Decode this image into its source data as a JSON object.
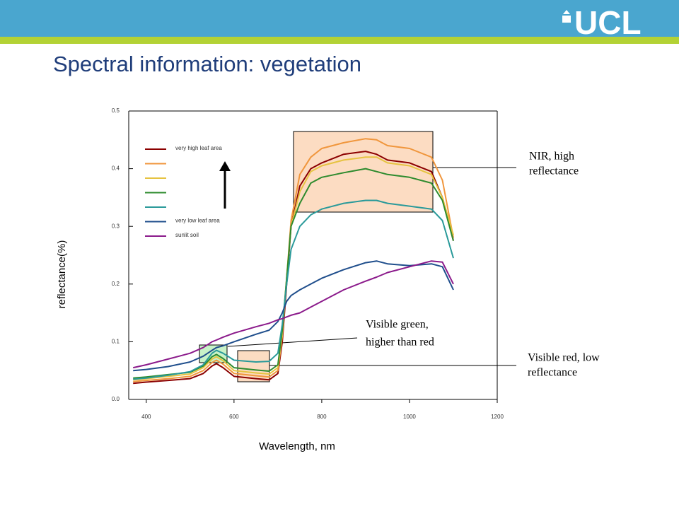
{
  "header": {
    "logo": "UCL"
  },
  "chart_data": {
    "type": "line",
    "title": "Spectral information: vegetation",
    "x_label": "Wavelength, nm",
    "y_label": "reflectance(%)",
    "xlim": [
      360,
      1200
    ],
    "ylim": [
      0,
      0.5
    ],
    "xticks": [
      400,
      600,
      800,
      1000,
      1200
    ],
    "yticks": [
      {
        "value": 0,
        "label": "0.0"
      },
      0.1,
      0.2,
      0.3,
      0.4,
      0.5
    ],
    "x": [
      370,
      400,
      450,
      500,
      530,
      550,
      560,
      575,
      600,
      650,
      680,
      700,
      710,
      720,
      730,
      750,
      775,
      800,
      850,
      900,
      925,
      950,
      1000,
      1050,
      1075,
      1100
    ],
    "series": [
      {
        "name": "very high leaf area",
        "color": "#8b0000",
        "values": [
          0.028,
          0.03,
          0.033,
          0.036,
          0.045,
          0.058,
          0.062,
          0.055,
          0.04,
          0.036,
          0.034,
          0.045,
          0.1,
          0.2,
          0.3,
          0.37,
          0.4,
          0.41,
          0.425,
          0.43,
          0.425,
          0.415,
          0.41,
          0.395,
          0.35,
          0.275
        ]
      },
      {
        "color": "#f0963c",
        "values": [
          0.031,
          0.033,
          0.036,
          0.04,
          0.05,
          0.064,
          0.068,
          0.061,
          0.045,
          0.041,
          0.039,
          0.05,
          0.11,
          0.21,
          0.31,
          0.39,
          0.42,
          0.435,
          0.445,
          0.452,
          0.45,
          0.44,
          0.435,
          0.42,
          0.38,
          0.28
        ]
      },
      {
        "color": "#e6c341",
        "values": [
          0.034,
          0.036,
          0.04,
          0.044,
          0.055,
          0.07,
          0.074,
          0.067,
          0.05,
          0.046,
          0.044,
          0.055,
          0.115,
          0.21,
          0.3,
          0.36,
          0.395,
          0.405,
          0.415,
          0.42,
          0.42,
          0.41,
          0.405,
          0.39,
          0.35,
          0.285
        ]
      },
      {
        "color": "#2e8b2e",
        "values": [
          0.037,
          0.039,
          0.043,
          0.047,
          0.058,
          0.074,
          0.078,
          0.071,
          0.055,
          0.051,
          0.049,
          0.06,
          0.12,
          0.21,
          0.3,
          0.34,
          0.375,
          0.385,
          0.393,
          0.4,
          0.395,
          0.39,
          0.385,
          0.375,
          0.345,
          0.275
        ]
      },
      {
        "color": "#2a9a9a",
        "values": [
          0.035,
          0.037,
          0.042,
          0.048,
          0.06,
          0.08,
          0.085,
          0.08,
          0.068,
          0.065,
          0.066,
          0.08,
          0.13,
          0.2,
          0.26,
          0.3,
          0.32,
          0.33,
          0.34,
          0.345,
          0.345,
          0.34,
          0.335,
          0.33,
          0.31,
          0.245
        ]
      },
      {
        "name": "very low leaf area",
        "color": "#1f4e8c",
        "values": [
          0.05,
          0.052,
          0.057,
          0.065,
          0.075,
          0.085,
          0.09,
          0.093,
          0.1,
          0.113,
          0.12,
          0.135,
          0.15,
          0.17,
          0.18,
          0.19,
          0.2,
          0.21,
          0.225,
          0.237,
          0.24,
          0.235,
          0.232,
          0.235,
          0.23,
          0.19
        ]
      },
      {
        "name": "sunlit soil",
        "color": "#8b1a8b",
        "values": [
          0.055,
          0.06,
          0.07,
          0.08,
          0.09,
          0.1,
          0.103,
          0.108,
          0.115,
          0.126,
          0.132,
          0.138,
          0.14,
          0.143,
          0.146,
          0.15,
          0.16,
          0.17,
          0.19,
          0.205,
          0.212,
          0.22,
          0.23,
          0.24,
          0.238,
          0.2
        ]
      }
    ],
    "annotations": [
      {
        "lines": [
          "NIR, high",
          "reflectance"
        ]
      },
      {
        "lines": [
          "Visible green,",
          "higher than red"
        ]
      },
      {
        "lines": [
          "Visible red, low",
          "reflectance"
        ]
      }
    ]
  }
}
